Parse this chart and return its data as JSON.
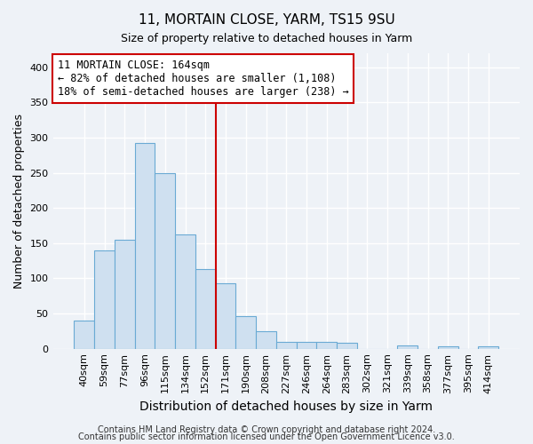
{
  "title": "11, MORTAIN CLOSE, YARM, TS15 9SU",
  "subtitle": "Size of property relative to detached houses in Yarm",
  "xlabel": "Distribution of detached houses by size in Yarm",
  "ylabel": "Number of detached properties",
  "bar_labels": [
    "40sqm",
    "59sqm",
    "77sqm",
    "96sqm",
    "115sqm",
    "134sqm",
    "152sqm",
    "171sqm",
    "190sqm",
    "208sqm",
    "227sqm",
    "246sqm",
    "264sqm",
    "283sqm",
    "302sqm",
    "321sqm",
    "339sqm",
    "358sqm",
    "377sqm",
    "395sqm",
    "414sqm"
  ],
  "bar_values": [
    40,
    140,
    155,
    292,
    250,
    162,
    113,
    93,
    46,
    25,
    10,
    10,
    10,
    8,
    0,
    0,
    5,
    0,
    3,
    0,
    3
  ],
  "bar_color": "#cfe0f0",
  "bar_edge_color": "#6aaad4",
  "vline_color": "#cc0000",
  "annotation_title": "11 MORTAIN CLOSE: 164sqm",
  "annotation_line1": "← 82% of detached houses are smaller (1,108)",
  "annotation_line2": "18% of semi-detached houses are larger (238) →",
  "annotation_box_facecolor": "#ffffff",
  "annotation_box_edgecolor": "#cc0000",
  "ylim": [
    0,
    420
  ],
  "yticks": [
    0,
    50,
    100,
    150,
    200,
    250,
    300,
    350,
    400
  ],
  "footer1": "Contains HM Land Registry data © Crown copyright and database right 2024.",
  "footer2": "Contains public sector information licensed under the Open Government Licence v3.0.",
  "background_color": "#eef2f7",
  "plot_background_color": "#eef2f7",
  "grid_color": "#ffffff",
  "title_fontsize": 11,
  "subtitle_fontsize": 9,
  "axis_label_fontsize": 9,
  "tick_fontsize": 8,
  "footer_fontsize": 7
}
